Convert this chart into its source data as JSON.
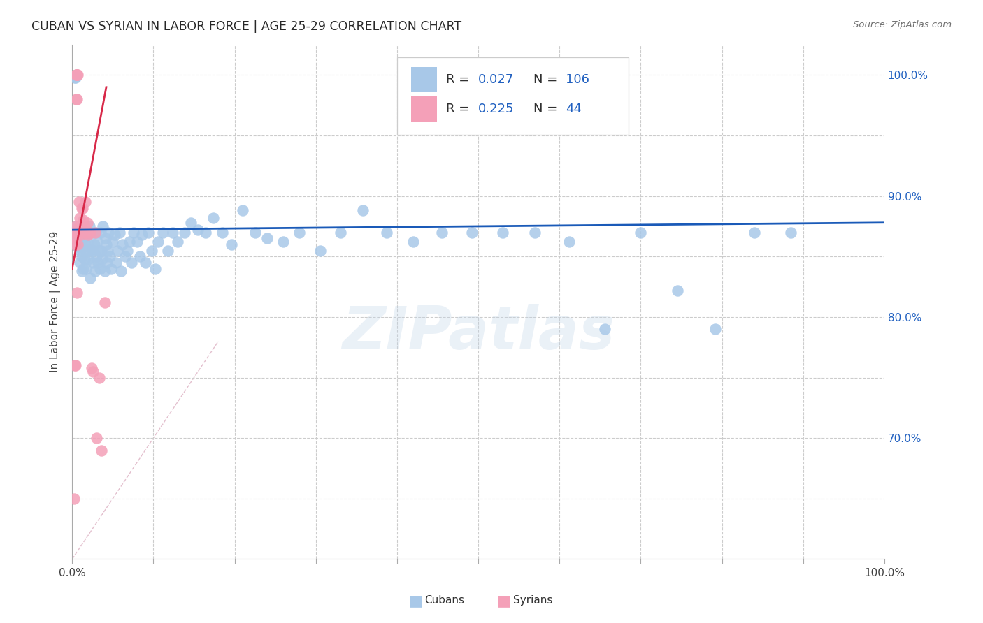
{
  "title": "CUBAN VS SYRIAN IN LABOR FORCE | AGE 25-29 CORRELATION CHART",
  "source": "Source: ZipAtlas.com",
  "ylabel": "In Labor Force | Age 25-29",
  "watermark": "ZIPatlas",
  "cuban_R": 0.027,
  "cuban_N": 106,
  "syrian_R": 0.225,
  "syrian_N": 44,
  "cuban_color": "#a8c8e8",
  "syrian_color": "#f4a0b8",
  "cuban_line_color": "#1a5ab8",
  "syrian_line_color": "#d82848",
  "diagonal_color": "#e0b8c8",
  "grid_color": "#cccccc",
  "title_color": "#282828",
  "right_axis_color": "#2060c0",
  "source_color": "#707070",
  "legend_color": "#2060c0",
  "xmin": 0.0,
  "xmax": 1.0,
  "ymin": 0.6,
  "ymax": 1.025,
  "yticks": [
    0.65,
    0.7,
    0.75,
    0.8,
    0.85,
    0.9,
    0.95,
    1.0
  ],
  "ytick_labels_right": [
    "",
    "70.0%",
    "",
    "80.0%",
    "",
    "90.0%",
    "",
    "100.0%"
  ],
  "cuban_x": [
    0.003,
    0.004,
    0.005,
    0.006,
    0.007,
    0.008,
    0.009,
    0.01,
    0.011,
    0.012,
    0.013,
    0.014,
    0.015,
    0.015,
    0.016,
    0.017,
    0.018,
    0.018,
    0.019,
    0.02,
    0.021,
    0.022,
    0.023,
    0.024,
    0.025,
    0.026,
    0.027,
    0.028,
    0.029,
    0.03,
    0.031,
    0.032,
    0.033,
    0.034,
    0.035,
    0.036,
    0.037,
    0.038,
    0.04,
    0.041,
    0.042,
    0.043,
    0.044,
    0.045,
    0.046,
    0.048,
    0.05,
    0.052,
    0.054,
    0.056,
    0.058,
    0.06,
    0.062,
    0.065,
    0.068,
    0.07,
    0.073,
    0.076,
    0.08,
    0.083,
    0.086,
    0.09,
    0.094,
    0.098,
    0.102,
    0.106,
    0.112,
    0.118,
    0.124,
    0.13,
    0.138,
    0.146,
    0.155,
    0.164,
    0.174,
    0.185,
    0.196,
    0.21,
    0.225,
    0.24,
    0.26,
    0.28,
    0.305,
    0.33,
    0.358,
    0.387,
    0.42,
    0.455,
    0.492,
    0.53,
    0.57,
    0.612,
    0.656,
    0.7,
    0.745,
    0.792,
    0.84,
    0.885,
    0.003,
    0.004,
    0.005,
    0.006,
    0.008,
    0.01,
    0.012,
    0.014
  ],
  "cuban_y": [
    0.998,
    0.998,
    0.875,
    0.865,
    0.858,
    0.872,
    0.845,
    0.855,
    0.862,
    0.85,
    0.858,
    0.865,
    0.848,
    0.862,
    0.87,
    0.84,
    0.868,
    0.855,
    0.862,
    0.848,
    0.875,
    0.832,
    0.856,
    0.87,
    0.855,
    0.845,
    0.86,
    0.838,
    0.87,
    0.85,
    0.862,
    0.845,
    0.855,
    0.84,
    0.87,
    0.855,
    0.848,
    0.875,
    0.838,
    0.865,
    0.86,
    0.845,
    0.855,
    0.87,
    0.85,
    0.84,
    0.862,
    0.868,
    0.845,
    0.855,
    0.87,
    0.838,
    0.86,
    0.85,
    0.855,
    0.862,
    0.845,
    0.87,
    0.862,
    0.85,
    0.868,
    0.845,
    0.87,
    0.855,
    0.84,
    0.862,
    0.87,
    0.855,
    0.87,
    0.862,
    0.87,
    0.878,
    0.872,
    0.87,
    0.882,
    0.87,
    0.86,
    0.888,
    0.87,
    0.865,
    0.862,
    0.87,
    0.855,
    0.87,
    0.888,
    0.87,
    0.862,
    0.87,
    0.87,
    0.87,
    0.87,
    0.862,
    0.79,
    0.87,
    0.822,
    0.79,
    0.87,
    0.87,
    0.87,
    0.87,
    0.87,
    0.87,
    0.87,
    0.87,
    0.838,
    0.84
  ],
  "syrian_x": [
    0.002,
    0.003,
    0.003,
    0.004,
    0.004,
    0.005,
    0.005,
    0.005,
    0.005,
    0.006,
    0.006,
    0.006,
    0.007,
    0.007,
    0.007,
    0.008,
    0.008,
    0.009,
    0.009,
    0.01,
    0.01,
    0.01,
    0.011,
    0.012,
    0.012,
    0.013,
    0.014,
    0.015,
    0.016,
    0.017,
    0.018,
    0.019,
    0.02,
    0.022,
    0.024,
    0.026,
    0.028,
    0.03,
    0.033,
    0.036,
    0.04,
    0.003,
    0.004,
    0.006
  ],
  "syrian_y": [
    0.65,
    0.87,
    0.86,
    0.875,
    0.865,
    1.0,
    1.0,
    1.0,
    0.98,
    1.0,
    1.0,
    0.98,
    1.0,
    0.87,
    0.86,
    0.895,
    0.875,
    0.882,
    0.87,
    0.875,
    0.87,
    0.87,
    0.868,
    0.89,
    0.87,
    0.89,
    0.88,
    0.875,
    0.895,
    0.87,
    0.87,
    0.878,
    0.868,
    0.87,
    0.758,
    0.755,
    0.87,
    0.7,
    0.75,
    0.69,
    0.812,
    0.76,
    0.76,
    0.82
  ],
  "cuban_trend_x": [
    0.0,
    1.0
  ],
  "cuban_trend_y": [
    0.872,
    0.878
  ],
  "syrian_trend_x": [
    0.0,
    0.042
  ],
  "syrian_trend_y": [
    0.84,
    0.99
  ]
}
